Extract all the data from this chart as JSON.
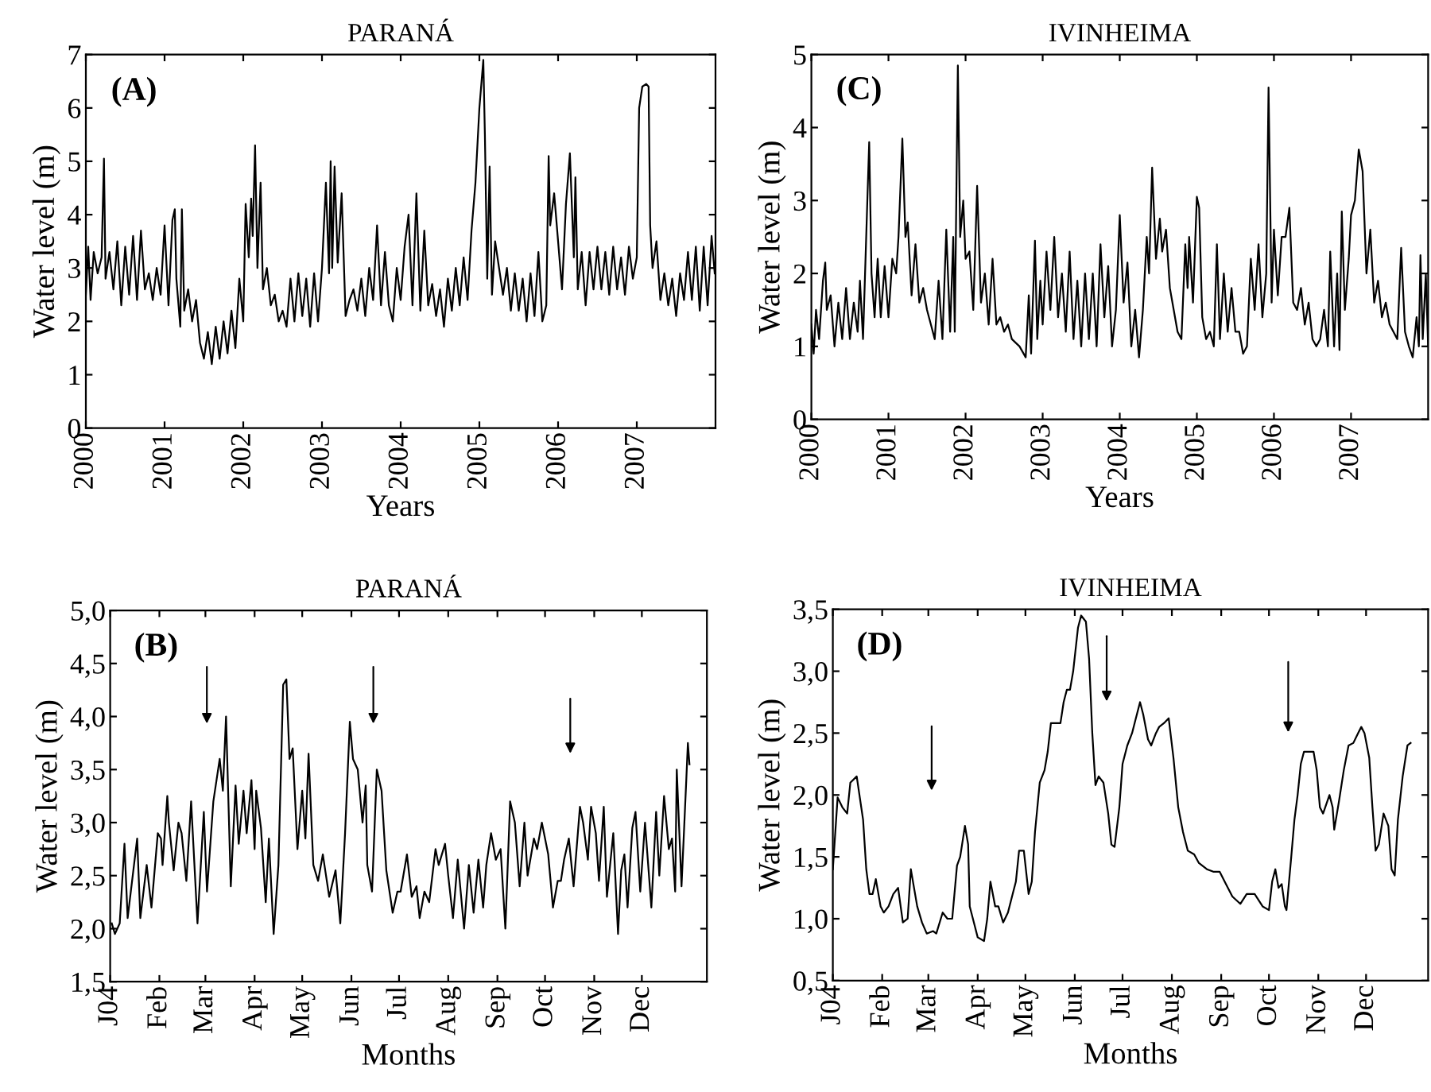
{
  "chart_data": [
    {
      "type": "line",
      "title": "PARANÁ",
      "xlabel": "Years",
      "ylabel": "Water level (m)",
      "annotations": [
        "(A)"
      ],
      "color": "#000000",
      "marker": "none",
      "line_style": "solid",
      "grid": false,
      "legend": false,
      "xlim": [
        2000,
        2008
      ],
      "ylim": [
        0,
        7
      ],
      "xticks": [
        2000,
        2001,
        2002,
        2003,
        2004,
        2005,
        2006,
        2007
      ],
      "yticks": [
        0,
        1,
        2,
        3,
        4,
        5,
        6,
        7
      ],
      "x": [
        2000.0,
        2000.03,
        2000.06,
        2000.1,
        2000.15,
        2000.2,
        2000.23,
        2000.25,
        2000.3,
        2000.35,
        2000.4,
        2000.45,
        2000.5,
        2000.55,
        2000.6,
        2000.65,
        2000.7,
        2000.75,
        2000.8,
        2000.85,
        2000.9,
        2000.95,
        2001.0,
        2001.05,
        2001.1,
        2001.13,
        2001.15,
        2001.2,
        2001.22,
        2001.25,
        2001.3,
        2001.35,
        2001.4,
        2001.45,
        2001.5,
        2001.55,
        2001.6,
        2001.65,
        2001.7,
        2001.75,
        2001.8,
        2001.85,
        2001.9,
        2001.95,
        2002.0,
        2002.03,
        2002.07,
        2002.1,
        2002.12,
        2002.15,
        2002.18,
        2002.22,
        2002.25,
        2002.3,
        2002.35,
        2002.4,
        2002.45,
        2002.5,
        2002.55,
        2002.6,
        2002.65,
        2002.7,
        2002.75,
        2002.8,
        2002.85,
        2002.9,
        2002.95,
        2003.0,
        2003.05,
        2003.09,
        2003.11,
        2003.13,
        2003.16,
        2003.2,
        2003.25,
        2003.3,
        2003.35,
        2003.4,
        2003.45,
        2003.5,
        2003.55,
        2003.6,
        2003.65,
        2003.7,
        2003.75,
        2003.8,
        2003.85,
        2003.9,
        2003.95,
        2004.0,
        2004.05,
        2004.1,
        2004.15,
        2004.2,
        2004.25,
        2004.3,
        2004.35,
        2004.4,
        2004.45,
        2004.5,
        2004.55,
        2004.6,
        2004.65,
        2004.7,
        2004.75,
        2004.8,
        2004.85,
        2004.9,
        2004.95,
        2005.0,
        2005.05,
        2005.07,
        2005.1,
        2005.13,
        2005.16,
        2005.2,
        2005.25,
        2005.3,
        2005.35,
        2005.4,
        2005.45,
        2005.5,
        2005.55,
        2005.6,
        2005.65,
        2005.7,
        2005.75,
        2005.8,
        2005.85,
        2005.88,
        2005.9,
        2005.95,
        2006.0,
        2006.05,
        2006.1,
        2006.15,
        2006.2,
        2006.22,
        2006.25,
        2006.3,
        2006.35,
        2006.4,
        2006.45,
        2006.5,
        2006.55,
        2006.6,
        2006.65,
        2006.7,
        2006.75,
        2006.8,
        2006.85,
        2006.9,
        2006.95,
        2007.0,
        2007.03,
        2007.07,
        2007.12,
        2007.15,
        2007.17,
        2007.2,
        2007.25,
        2007.3,
        2007.35,
        2007.4,
        2007.45,
        2007.5,
        2007.55,
        2007.6,
        2007.65,
        2007.7,
        2007.75,
        2007.8,
        2007.85,
        2007.9,
        2007.95,
        2007.99
      ],
      "values": [
        2.5,
        3.4,
        2.4,
        3.3,
        2.9,
        3.2,
        5.05,
        2.8,
        3.3,
        2.6,
        3.5,
        2.3,
        3.4,
        2.5,
        3.6,
        2.4,
        3.7,
        2.6,
        2.9,
        2.4,
        3.0,
        2.5,
        3.8,
        2.3,
        3.9,
        4.1,
        2.8,
        1.9,
        4.1,
        2.2,
        2.6,
        2.0,
        2.4,
        1.6,
        1.3,
        1.8,
        1.2,
        1.9,
        1.3,
        2.0,
        1.4,
        2.2,
        1.5,
        2.8,
        2.0,
        4.2,
        3.2,
        4.3,
        3.6,
        5.3,
        3.0,
        4.6,
        2.6,
        3.0,
        2.3,
        2.5,
        2.0,
        2.2,
        1.9,
        2.8,
        2.0,
        2.9,
        2.1,
        2.8,
        1.9,
        2.9,
        2.0,
        3.0,
        4.6,
        2.9,
        5.0,
        3.0,
        4.9,
        3.1,
        4.4,
        2.1,
        2.4,
        2.6,
        2.2,
        2.8,
        2.1,
        3.0,
        2.4,
        3.8,
        2.3,
        3.3,
        2.3,
        2.0,
        3.0,
        2.4,
        3.4,
        4.0,
        2.3,
        4.4,
        2.2,
        3.7,
        2.3,
        2.7,
        2.1,
        2.6,
        1.9,
        2.8,
        2.2,
        3.0,
        2.3,
        3.2,
        2.4,
        3.7,
        4.6,
        6.0,
        6.9,
        5.5,
        2.8,
        4.9,
        2.5,
        3.5,
        3.0,
        2.5,
        3.0,
        2.2,
        2.9,
        2.2,
        2.8,
        2.0,
        2.9,
        2.1,
        3.3,
        2.0,
        2.3,
        5.1,
        3.8,
        4.4,
        3.5,
        2.6,
        4.2,
        5.15,
        3.2,
        4.7,
        2.6,
        3.3,
        2.3,
        3.3,
        2.6,
        3.4,
        2.6,
        3.3,
        2.5,
        3.4,
        2.6,
        3.2,
        2.5,
        3.4,
        2.8,
        3.2,
        6.0,
        6.4,
        6.45,
        6.4,
        3.8,
        3.0,
        3.5,
        2.4,
        2.9,
        2.3,
        2.8,
        2.1,
        2.9,
        2.4,
        3.3,
        2.4,
        3.4,
        2.2,
        3.4,
        2.3,
        3.6,
        2.9
      ]
    },
    {
      "type": "line",
      "title": "IVINHEIMA",
      "xlabel": "Years",
      "ylabel": "Water level (m)",
      "annotations": [
        "(C)"
      ],
      "color": "#000000",
      "marker": "none",
      "line_style": "solid",
      "grid": false,
      "legend": false,
      "xlim": [
        2000,
        2008
      ],
      "ylim": [
        0,
        5
      ],
      "xticks": [
        2000,
        2001,
        2002,
        2003,
        2004,
        2005,
        2006,
        2007
      ],
      "yticks": [
        0,
        1,
        2,
        3,
        4,
        5
      ],
      "x": [
        2000.0,
        2000.03,
        2000.06,
        2000.1,
        2000.15,
        2000.18,
        2000.2,
        2000.25,
        2000.3,
        2000.35,
        2000.4,
        2000.45,
        2000.5,
        2000.55,
        2000.6,
        2000.63,
        2000.67,
        2000.72,
        2000.75,
        2000.78,
        2000.82,
        2000.86,
        2000.9,
        2000.95,
        2001.0,
        2001.05,
        2001.1,
        2001.13,
        2001.18,
        2001.22,
        2001.25,
        2001.3,
        2001.35,
        2001.4,
        2001.45,
        2001.5,
        2001.55,
        2001.6,
        2001.65,
        2001.7,
        2001.75,
        2001.8,
        2001.84,
        2001.86,
        2001.9,
        2001.93,
        2001.97,
        2002.0,
        2002.05,
        2002.1,
        2002.15,
        2002.2,
        2002.25,
        2002.3,
        2002.35,
        2002.4,
        2002.45,
        2002.5,
        2002.55,
        2002.6,
        2002.7,
        2002.78,
        2002.82,
        2002.85,
        2002.9,
        2002.93,
        2002.97,
        2003.0,
        2003.05,
        2003.1,
        2003.15,
        2003.2,
        2003.25,
        2003.3,
        2003.35,
        2003.4,
        2003.45,
        2003.5,
        2003.55,
        2003.6,
        2003.65,
        2003.7,
        2003.75,
        2003.8,
        2003.85,
        2003.9,
        2003.95,
        2004.0,
        2004.05,
        2004.1,
        2004.15,
        2004.2,
        2004.25,
        2004.3,
        2004.35,
        2004.38,
        2004.42,
        2004.47,
        2004.52,
        2004.55,
        2004.6,
        2004.65,
        2004.7,
        2004.75,
        2004.8,
        2004.85,
        2004.88,
        2004.9,
        2004.95,
        2005.0,
        2005.03,
        2005.07,
        2005.12,
        2005.17,
        2005.22,
        2005.26,
        2005.3,
        2005.35,
        2005.4,
        2005.45,
        2005.5,
        2005.55,
        2005.6,
        2005.65,
        2005.7,
        2005.75,
        2005.8,
        2005.85,
        2005.9,
        2005.93,
        2005.97,
        2006.0,
        2006.05,
        2006.1,
        2006.15,
        2006.2,
        2006.25,
        2006.3,
        2006.35,
        2006.4,
        2006.45,
        2006.5,
        2006.55,
        2006.6,
        2006.65,
        2006.7,
        2006.73,
        2006.78,
        2006.82,
        2006.85,
        2006.88,
        2006.92,
        2006.97,
        2007.0,
        2007.05,
        2007.1,
        2007.15,
        2007.2,
        2007.25,
        2007.3,
        2007.35,
        2007.4,
        2007.45,
        2007.5,
        2007.55,
        2007.6,
        2007.65,
        2007.7,
        2007.75,
        2007.8,
        2007.85,
        2007.88,
        2007.9,
        2007.93,
        2007.97,
        2008.0
      ],
      "values": [
        1.3,
        0.9,
        1.5,
        1.1,
        1.9,
        2.15,
        1.5,
        1.7,
        1.0,
        1.6,
        1.1,
        1.8,
        1.1,
        1.6,
        1.2,
        1.9,
        1.1,
        2.8,
        3.8,
        2.0,
        1.4,
        2.2,
        1.4,
        2.1,
        1.4,
        2.2,
        2.0,
        2.5,
        3.85,
        2.5,
        2.7,
        1.7,
        2.4,
        1.6,
        1.8,
        1.5,
        1.3,
        1.1,
        1.9,
        1.1,
        2.6,
        1.2,
        2.5,
        1.2,
        4.85,
        2.5,
        3.0,
        2.2,
        2.3,
        1.5,
        3.2,
        1.6,
        2.0,
        1.3,
        2.2,
        1.3,
        1.4,
        1.2,
        1.3,
        1.1,
        1.0,
        0.85,
        1.7,
        0.9,
        2.45,
        1.1,
        1.9,
        1.3,
        2.3,
        1.5,
        2.5,
        1.4,
        2.0,
        1.2,
        2.3,
        1.1,
        1.9,
        1.0,
        2.0,
        1.1,
        2.0,
        1.0,
        2.4,
        1.4,
        2.1,
        1.0,
        1.5,
        2.8,
        1.6,
        2.15,
        1.0,
        1.5,
        0.85,
        1.5,
        2.5,
        2.0,
        3.45,
        2.2,
        2.75,
        2.3,
        2.6,
        1.8,
        1.5,
        1.2,
        1.1,
        2.4,
        1.8,
        2.5,
        1.6,
        3.05,
        2.9,
        1.4,
        1.1,
        1.2,
        1.0,
        2.4,
        1.1,
        2.0,
        1.2,
        1.8,
        1.2,
        1.2,
        0.9,
        1.0,
        2.2,
        1.5,
        2.4,
        1.4,
        2.0,
        4.55,
        1.6,
        2.6,
        1.7,
        2.5,
        2.5,
        2.9,
        1.6,
        1.5,
        1.8,
        1.3,
        1.6,
        1.1,
        1.0,
        1.1,
        1.5,
        1.0,
        2.3,
        1.0,
        2.0,
        0.95,
        2.85,
        1.5,
        2.2,
        2.8,
        3.0,
        3.7,
        3.4,
        2.0,
        2.6,
        1.6,
        1.9,
        1.4,
        1.6,
        1.3,
        1.2,
        1.1,
        2.35,
        1.2,
        1.0,
        0.85,
        1.4,
        1.0,
        2.25,
        1.1,
        2.0,
        1.0
      ]
    },
    {
      "type": "line",
      "title": "PARANÁ",
      "xlabel": "Months",
      "ylabel": "Water level (m)",
      "color": "#000000",
      "marker": "none",
      "line_style": "solid",
      "grid": false,
      "legend": false,
      "annotations": [
        "(B)"
      ],
      "xlim": [
        "2004-01-01",
        "2005-01-11"
      ],
      "ylim": [
        1.5,
        5.0
      ],
      "xticks": [
        {
          "value": "2004-01-01",
          "label": "J04"
        },
        {
          "value": "2004-02-01",
          "label": "Feb"
        },
        {
          "value": "2004-03-01",
          "label": "Mar"
        },
        {
          "value": "2004-04-01",
          "label": "Apr"
        },
        {
          "value": "2004-05-01",
          "label": "May"
        },
        {
          "value": "2004-06-01",
          "label": "Jun"
        },
        {
          "value": "2004-07-01",
          "label": "Jul"
        },
        {
          "value": "2004-08-01",
          "label": "Aug"
        },
        {
          "value": "2004-09-01",
          "label": "Sep"
        },
        {
          "value": "2004-10-01",
          "label": "Oct"
        },
        {
          "value": "2004-11-01",
          "label": "Nov"
        },
        {
          "value": "2004-12-01",
          "label": "Dec"
        }
      ],
      "yticks": [
        {
          "value": 1.5,
          "label": "1,5"
        },
        {
          "value": 2.0,
          "label": "2,0"
        },
        {
          "value": 2.5,
          "label": "2,5"
        },
        {
          "value": 3.0,
          "label": "3,0"
        },
        {
          "value": 3.5,
          "label": "3,5"
        },
        {
          "value": 4.0,
          "label": "4,0"
        },
        {
          "value": 4.5,
          "label": "4,5"
        },
        {
          "value": 5.0,
          "label": "5,0"
        }
      ],
      "x": [
        "2004-01-02",
        "2004-01-04",
        "2004-01-07",
        "2004-01-10",
        "2004-01-12",
        "2004-01-18",
        "2004-01-20",
        "2004-01-24",
        "2004-01-27",
        "2004-01-31",
        "2004-02-02",
        "2004-02-03",
        "2004-02-06",
        "2004-02-07",
        "2004-02-10",
        "2004-02-13",
        "2004-02-15",
        "2004-02-18",
        "2004-02-21",
        "2004-02-25",
        "2004-02-29",
        "2004-03-02",
        "2004-03-06",
        "2004-03-10",
        "2004-03-12",
        "2004-03-14",
        "2004-03-17",
        "2004-03-20",
        "2004-03-22",
        "2004-03-25",
        "2004-03-27",
        "2004-03-30",
        "2004-04-01",
        "2004-04-02",
        "2004-04-05",
        "2004-04-08",
        "2004-04-10",
        "2004-04-13",
        "2004-04-16",
        "2004-04-19",
        "2004-04-21",
        "2004-04-23",
        "2004-04-25",
        "2004-04-28",
        "2004-05-01",
        "2004-05-03",
        "2004-05-05",
        "2004-05-08",
        "2004-05-11",
        "2004-05-14",
        "2004-05-18",
        "2004-05-22",
        "2004-05-25",
        "2004-05-28",
        "2004-05-31",
        "2004-06-02",
        "2004-06-05",
        "2004-06-08",
        "2004-06-10",
        "2004-06-11",
        "2004-06-14",
        "2004-06-17",
        "2004-06-20",
        "2004-06-23",
        "2004-06-27",
        "2004-06-30",
        "2004-07-02",
        "2004-07-06",
        "2004-07-09",
        "2004-07-12",
        "2004-07-14",
        "2004-07-17",
        "2004-07-20",
        "2004-07-24",
        "2004-07-26",
        "2004-07-30",
        "2004-08-01",
        "2004-08-04",
        "2004-08-07",
        "2004-08-11",
        "2004-08-14",
        "2004-08-17",
        "2004-08-20",
        "2004-08-23",
        "2004-08-25",
        "2004-08-28",
        "2004-08-31",
        "2004-09-03",
        "2004-09-06",
        "2004-09-09",
        "2004-09-12",
        "2004-09-15",
        "2004-09-18",
        "2004-09-20",
        "2004-09-24",
        "2004-09-26",
        "2004-09-29",
        "2004-10-03",
        "2004-10-06",
        "2004-10-09",
        "2004-10-11",
        "2004-10-13",
        "2004-10-16",
        "2004-10-19",
        "2004-10-23",
        "2004-10-25",
        "2004-10-28",
        "2004-10-30",
        "2004-11-02",
        "2004-11-04",
        "2004-11-07",
        "2004-11-09",
        "2004-11-13",
        "2004-11-16",
        "2004-11-18",
        "2004-11-20",
        "2004-11-22",
        "2004-11-25",
        "2004-11-27",
        "2004-11-30",
        "2004-12-03",
        "2004-12-07",
        "2004-12-10",
        "2004-12-12",
        "2004-12-15",
        "2004-12-18",
        "2004-12-20",
        "2004-12-22",
        "2004-12-23",
        "2004-12-26",
        "2004-12-29",
        "2004-12-30",
        "2004-12-31"
      ],
      "values": [
        2.05,
        1.95,
        2.05,
        2.8,
        2.1,
        2.85,
        2.1,
        2.6,
        2.2,
        2.9,
        2.85,
        2.6,
        3.25,
        3.0,
        2.55,
        3.0,
        2.9,
        2.45,
        3.2,
        2.05,
        3.1,
        2.35,
        3.2,
        3.6,
        3.3,
        4.0,
        2.4,
        3.35,
        2.8,
        3.3,
        2.9,
        3.4,
        2.75,
        3.3,
        2.95,
        2.25,
        2.85,
        1.95,
        2.6,
        4.3,
        4.35,
        3.6,
        3.7,
        2.75,
        3.3,
        2.85,
        3.65,
        2.6,
        2.45,
        2.7,
        2.3,
        2.55,
        2.05,
        2.9,
        3.95,
        3.6,
        3.5,
        3.0,
        3.35,
        2.6,
        2.35,
        3.5,
        3.3,
        2.55,
        2.15,
        2.35,
        2.35,
        2.7,
        2.3,
        2.4,
        2.1,
        2.35,
        2.25,
        2.75,
        2.6,
        2.8,
        2.5,
        2.1,
        2.65,
        2.0,
        2.6,
        2.15,
        2.65,
        2.2,
        2.6,
        2.9,
        2.65,
        2.75,
        2.0,
        3.2,
        3.0,
        2.4,
        3.0,
        2.5,
        2.85,
        2.75,
        3.0,
        2.7,
        2.2,
        2.45,
        2.45,
        2.65,
        2.85,
        2.4,
        3.15,
        3.0,
        2.65,
        3.15,
        2.9,
        2.45,
        3.15,
        2.3,
        2.9,
        1.95,
        2.55,
        2.7,
        2.2,
        2.95,
        3.1,
        2.35,
        3.0,
        2.2,
        3.1,
        2.5,
        3.25,
        2.75,
        2.85,
        2.35,
        3.5,
        2.4,
        3.4,
        3.75,
        3.55
      ]
    },
    {
      "type": "line",
      "title": "IVINHEIMA",
      "xlabel": "Months",
      "ylabel": "Water level (m)",
      "color": "#000000",
      "marker": "none",
      "line_style": "solid",
      "grid": false,
      "legend": false,
      "annotations": [
        "(D)"
      ],
      "xlim": [
        "2004-01-01",
        "2005-01-09"
      ],
      "ylim": [
        0.5,
        3.5
      ],
      "xticks": [
        {
          "value": "2004-01-01",
          "label": "J04"
        },
        {
          "value": "2004-02-01",
          "label": "Feb"
        },
        {
          "value": "2004-03-01",
          "label": "Mar"
        },
        {
          "value": "2004-04-01",
          "label": "Apr"
        },
        {
          "value": "2004-05-01",
          "label": "May"
        },
        {
          "value": "2004-06-01",
          "label": "Jun"
        },
        {
          "value": "2004-07-01",
          "label": "Jul"
        },
        {
          "value": "2004-08-01",
          "label": "Aug"
        },
        {
          "value": "2004-09-01",
          "label": "Sep"
        },
        {
          "value": "2004-10-01",
          "label": "Oct"
        },
        {
          "value": "2004-11-01",
          "label": "Nov"
        },
        {
          "value": "2004-12-01",
          "label": "Dec"
        }
      ],
      "yticks": [
        {
          "value": 0.5,
          "label": "0,5"
        },
        {
          "value": 1.0,
          "label": "1,0"
        },
        {
          "value": 1.5,
          "label": "1,5"
        },
        {
          "value": 2.0,
          "label": "2,0"
        },
        {
          "value": 2.5,
          "label": "2,5"
        },
        {
          "value": 3.0,
          "label": "3,0"
        },
        {
          "value": 3.5,
          "label": "3,5"
        }
      ],
      "x": [
        "2004-01-01",
        "2004-01-04",
        "2004-01-07",
        "2004-01-10",
        "2004-01-12",
        "2004-01-16",
        "2004-01-20",
        "2004-01-22",
        "2004-01-24",
        "2004-01-26",
        "2004-01-28",
        "2004-01-31",
        "2004-02-02",
        "2004-02-05",
        "2004-02-08",
        "2004-02-11",
        "2004-02-14",
        "2004-02-17",
        "2004-02-19",
        "2004-02-23",
        "2004-02-26",
        "2004-02-29",
        "2004-03-04",
        "2004-03-06",
        "2004-03-10",
        "2004-03-13",
        "2004-03-16",
        "2004-03-19",
        "2004-03-21",
        "2004-03-24",
        "2004-03-26",
        "2004-03-27",
        "2004-03-30",
        "2004-04-01",
        "2004-04-05",
        "2004-04-07",
        "2004-04-09",
        "2004-04-12",
        "2004-04-14",
        "2004-04-17",
        "2004-04-20",
        "2004-04-23",
        "2004-04-25",
        "2004-04-27",
        "2004-04-30",
        "2004-05-03",
        "2004-05-05",
        "2004-05-07",
        "2004-05-10",
        "2004-05-13",
        "2004-05-15",
        "2004-05-17",
        "2004-05-23",
        "2004-05-25",
        "2004-05-27",
        "2004-05-29",
        "2004-05-31",
        "2004-06-03",
        "2004-06-05",
        "2004-06-08",
        "2004-06-10",
        "2004-06-12",
        "2004-06-14",
        "2004-06-16",
        "2004-06-19",
        "2004-06-22",
        "2004-06-24",
        "2004-06-26",
        "2004-06-29",
        "2004-07-01",
        "2004-07-04",
        "2004-07-07",
        "2004-07-09",
        "2004-07-12",
        "2004-07-14",
        "2004-07-17",
        "2004-07-19",
        "2004-07-22",
        "2004-07-24",
        "2004-07-27",
        "2004-07-30",
        "2004-08-02",
        "2004-08-05",
        "2004-08-08",
        "2004-08-11",
        "2004-08-15",
        "2004-08-18",
        "2004-08-23",
        "2004-08-27",
        "2004-08-31",
        "2004-09-04",
        "2004-09-08",
        "2004-09-13",
        "2004-09-17",
        "2004-09-22",
        "2004-09-27",
        "2004-10-01",
        "2004-10-03",
        "2004-10-05",
        "2004-10-07",
        "2004-10-09",
        "2004-10-11",
        "2004-10-12",
        "2004-10-15",
        "2004-10-17",
        "2004-10-19",
        "2004-10-21",
        "2004-10-23",
        "2004-10-26",
        "2004-10-29",
        "2004-10-31",
        "2004-11-02",
        "2004-11-04",
        "2004-11-08",
        "2004-11-10",
        "2004-11-11",
        "2004-11-14",
        "2004-11-17",
        "2004-11-20",
        "2004-11-23",
        "2004-11-26",
        "2004-11-28",
        "2004-11-30",
        "2004-12-03",
        "2004-12-05",
        "2004-12-07",
        "2004-12-09",
        "2004-12-12",
        "2004-12-15",
        "2004-12-17",
        "2004-12-19",
        "2004-12-21",
        "2004-12-24",
        "2004-12-27",
        "2004-12-29"
      ],
      "values": [
        1.4,
        1.98,
        1.9,
        1.85,
        2.1,
        2.15,
        1.8,
        1.4,
        1.2,
        1.2,
        1.32,
        1.1,
        1.05,
        1.1,
        1.2,
        1.25,
        0.97,
        1.0,
        1.4,
        1.1,
        0.97,
        0.88,
        0.9,
        0.88,
        1.05,
        1.0,
        1.0,
        1.43,
        1.5,
        1.75,
        1.6,
        1.1,
        0.95,
        0.85,
        0.82,
        1.0,
        1.3,
        1.1,
        1.1,
        0.97,
        1.05,
        1.2,
        1.3,
        1.55,
        1.55,
        1.2,
        1.3,
        1.7,
        2.1,
        2.2,
        2.35,
        2.58,
        2.58,
        2.75,
        2.85,
        2.85,
        3.0,
        3.35,
        3.45,
        3.4,
        3.1,
        2.5,
        2.08,
        2.15,
        2.1,
        1.85,
        1.6,
        1.58,
        1.9,
        2.25,
        2.4,
        2.5,
        2.6,
        2.75,
        2.65,
        2.45,
        2.4,
        2.5,
        2.55,
        2.58,
        2.62,
        2.3,
        1.9,
        1.7,
        1.55,
        1.52,
        1.45,
        1.4,
        1.38,
        1.38,
        1.28,
        1.18,
        1.12,
        1.2,
        1.2,
        1.1,
        1.07,
        1.3,
        1.4,
        1.25,
        1.28,
        1.1,
        1.07,
        1.5,
        1.8,
        2.0,
        2.25,
        2.35,
        2.35,
        2.35,
        2.2,
        1.9,
        1.85,
        2.0,
        1.9,
        1.72,
        1.95,
        2.2,
        2.4,
        2.42,
        2.5,
        2.55,
        2.5,
        2.3,
        1.9,
        1.55,
        1.6,
        1.85,
        1.75,
        1.4,
        1.35,
        1.8,
        2.15,
        2.4,
        2.42
      ]
    }
  ]
}
